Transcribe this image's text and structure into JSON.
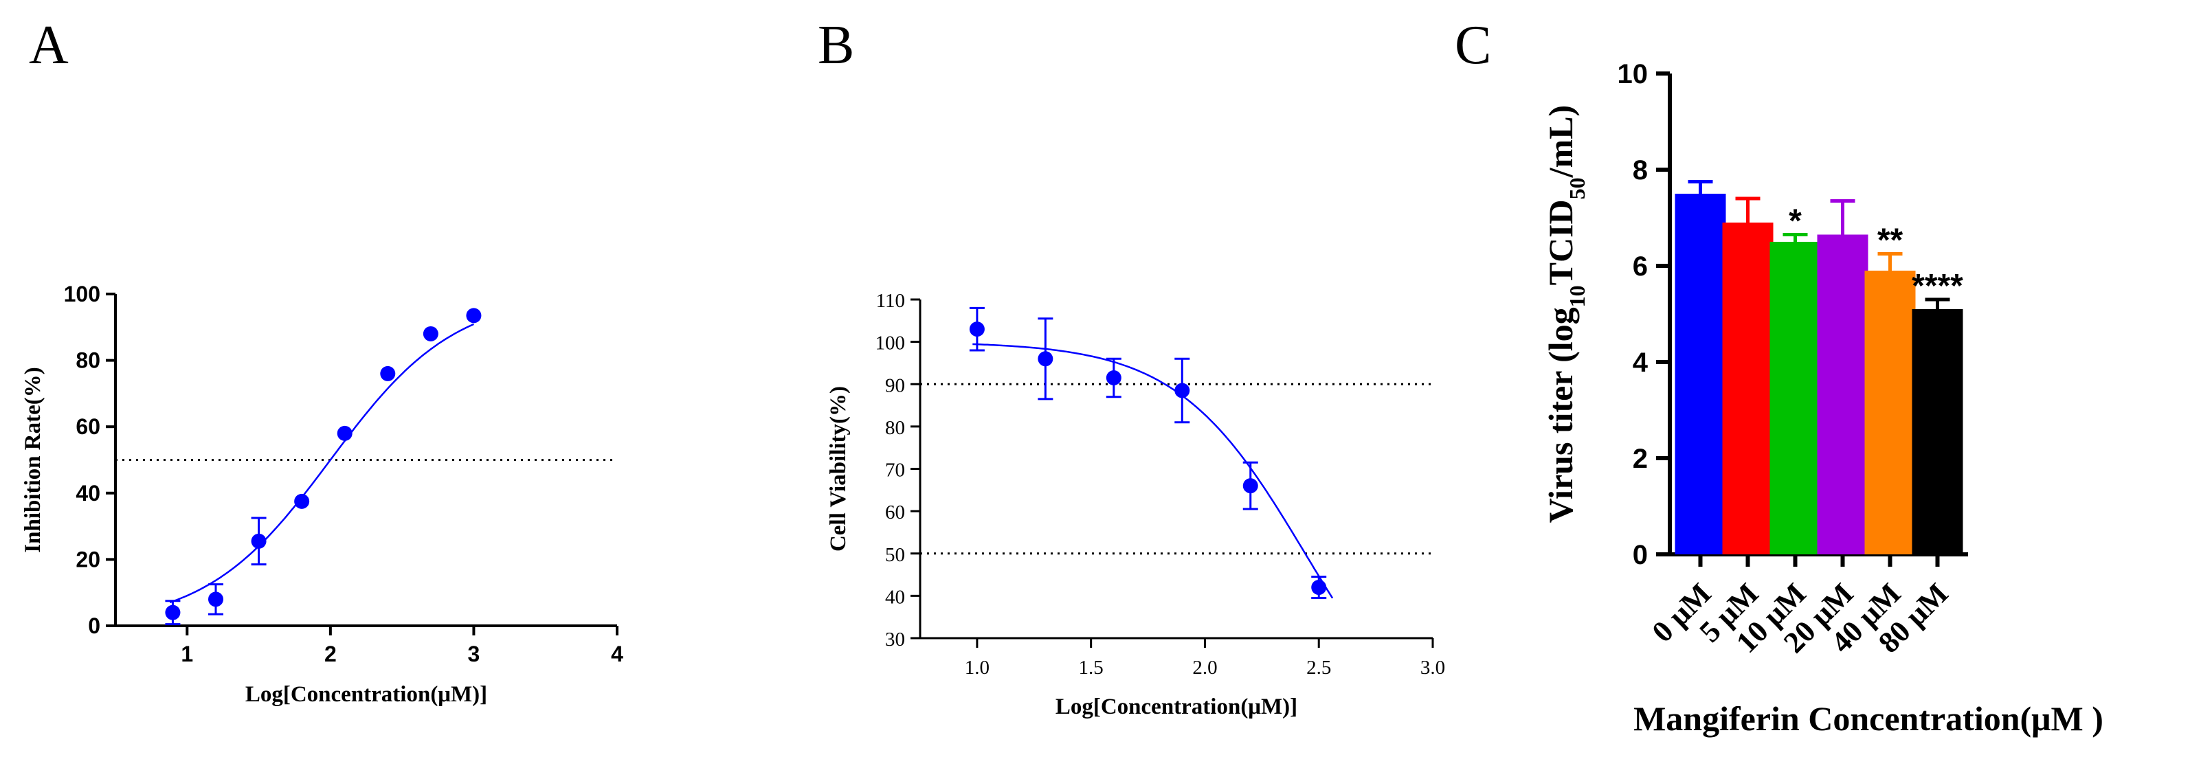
{
  "chart_data": [
    {
      "panel": "A",
      "type": "scatter",
      "xlabel": "Log[Concentration(μM)]",
      "ylabel": "Inhibition Rate(%)",
      "xlim": [
        0.5,
        4
      ],
      "ylim": [
        0,
        100
      ],
      "xticks": [
        "1",
        "2",
        "3",
        "4"
      ],
      "yticks": [
        "0",
        "20",
        "40",
        "60",
        "80",
        "100"
      ],
      "x": [
        0.9,
        1.2,
        1.5,
        1.8,
        2.1,
        2.4,
        2.7,
        3.0
      ],
      "y": [
        4,
        8,
        25.5,
        37.5,
        58,
        76,
        88,
        93.5
      ],
      "err": [
        3.5,
        4.5,
        7,
        0,
        0,
        0,
        0,
        0
      ],
      "reference_lines": [
        50
      ],
      "color": "#0000ff",
      "fit": "sigmoid"
    },
    {
      "panel": "B",
      "type": "scatter",
      "xlabel": "Log[Concentration(μM)]",
      "ylabel": "Cell Viability(%)",
      "xlim": [
        0.75,
        3.0
      ],
      "ylim": [
        30,
        110
      ],
      "xticks": [
        "1.0",
        "1.5",
        "2.0",
        "2.5",
        "3.0"
      ],
      "yticks": [
        "30",
        "40",
        "50",
        "60",
        "70",
        "80",
        "90",
        "100",
        "110"
      ],
      "x": [
        1.0,
        1.3,
        1.6,
        1.9,
        2.2,
        2.5
      ],
      "y": [
        103,
        96,
        91.5,
        88.5,
        66,
        42
      ],
      "err": [
        5,
        9.5,
        4.5,
        7.5,
        5.5,
        2.5
      ],
      "reference_lines": [
        90,
        50
      ],
      "color": "#0000ff",
      "fit": "sigmoid"
    },
    {
      "panel": "C",
      "type": "bar",
      "xlabel": "Mangiferin Concentration(μM )",
      "ylabel_parts": [
        "Virus titer (log",
        "10",
        "TCID",
        "50",
        "/mL)"
      ],
      "ylim": [
        0,
        10
      ],
      "yticks": [
        "0",
        "2",
        "4",
        "6",
        "8",
        "10"
      ],
      "categories": [
        "0 μM",
        "5 μM",
        "10 μM",
        "20 μM",
        "40 μM",
        "80 μM"
      ],
      "values": [
        7.5,
        6.9,
        6.5,
        6.65,
        5.9,
        5.1
      ],
      "err": [
        0.25,
        0.5,
        0.15,
        0.7,
        0.35,
        0.2
      ],
      "colors": [
        "#0000ff",
        "#ff0000",
        "#00c000",
        "#a000e0",
        "#ff8000",
        "#000000"
      ],
      "significance": [
        "",
        "",
        "*",
        "",
        "**",
        "****"
      ]
    }
  ],
  "panels": {
    "a": "A",
    "b": "B",
    "c": "C"
  }
}
